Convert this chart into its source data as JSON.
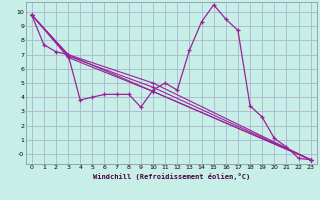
{
  "xlabel": "Windchill (Refroidissement éolien,°C)",
  "bg_color": "#c8eee8",
  "grid_color": "#aab8cc",
  "line_color": "#992299",
  "xlim": [
    -0.5,
    23.5
  ],
  "ylim": [
    -0.7,
    10.7
  ],
  "xticks": [
    0,
    1,
    2,
    3,
    4,
    5,
    6,
    7,
    8,
    9,
    10,
    11,
    12,
    13,
    14,
    15,
    16,
    17,
    18,
    19,
    20,
    21,
    22,
    23
  ],
  "yticks": [
    0,
    1,
    2,
    3,
    4,
    5,
    6,
    7,
    8,
    9,
    10
  ],
  "lines": [
    [
      0,
      9.8,
      1,
      7.7,
      2,
      7.2,
      3,
      7.0,
      4,
      3.8,
      5,
      4.0,
      6,
      4.2,
      7,
      4.2,
      8,
      4.2,
      9,
      3.3,
      10,
      4.5,
      11,
      5.0,
      12,
      4.5,
      13,
      7.3,
      14,
      9.3,
      15,
      10.5,
      16,
      9.5,
      17,
      8.7,
      18,
      3.4,
      19,
      2.6,
      20,
      1.1,
      21,
      0.5,
      22,
      -0.3,
      23,
      -0.4
    ],
    [
      0,
      9.8,
      3,
      7.0,
      23,
      -0.4
    ],
    [
      0,
      9.8,
      3,
      7.0,
      10,
      5.0,
      23,
      -0.4
    ],
    [
      0,
      9.8,
      3,
      6.9,
      10,
      4.7,
      23,
      -0.4
    ],
    [
      0,
      9.8,
      3,
      6.8,
      10,
      4.4,
      23,
      -0.4
    ]
  ]
}
